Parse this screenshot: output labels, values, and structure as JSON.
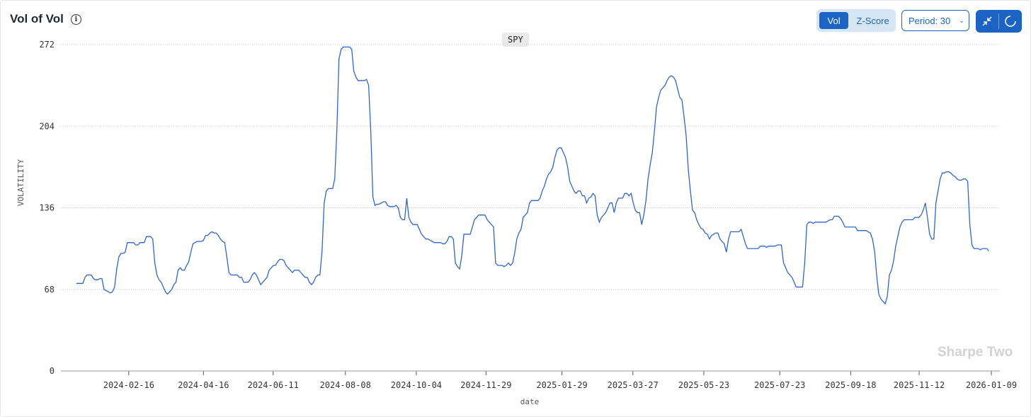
{
  "header": {
    "title": "Vol of Vol",
    "info_icon": "info-icon",
    "toggle": {
      "vol_label": "Vol",
      "zscore_label": "Z-Score",
      "active": "Vol"
    },
    "period_label": "Period: 30",
    "actions": [
      "collapse-icon",
      "refresh-icon"
    ]
  },
  "badge": "SPY",
  "watermark": "Sharpe Two",
  "colors": {
    "accent": "#1b64c4",
    "line": "#2e66cc",
    "grid": "#c8c8c8"
  },
  "chart_data": {
    "type": "line",
    "xlabel": "date",
    "ylabel": "VOLATILITY",
    "x_start": "2024-01-05",
    "x_end": "2026-01-07",
    "xlim": [
      "2024-01-01",
      "2026-01-09"
    ],
    "ylim": [
      0,
      272
    ],
    "yticks": [
      0,
      68,
      136,
      204,
      272
    ],
    "xticks": [
      "2024-02-16",
      "2024-04-16",
      "2024-06-11",
      "2024-08-08",
      "2024-10-04",
      "2024-11-29",
      "2025-01-29",
      "2025-03-27",
      "2025-05-23",
      "2025-07-23",
      "2025-09-18",
      "2025-11-12",
      "2026-01-09"
    ],
    "grid": true,
    "series": [
      {
        "name": "SPY",
        "values": [
          73,
          73,
          73,
          73,
          78,
          80,
          80,
          80,
          77,
          76,
          76,
          77,
          77,
          68,
          67,
          66,
          65,
          66,
          70,
          85,
          95,
          98,
          98,
          99,
          107,
          107,
          107,
          107,
          105,
          105,
          107,
          107,
          107,
          112,
          112,
          112,
          110,
          90,
          80,
          76,
          74,
          70,
          66,
          64,
          66,
          68,
          72,
          74,
          84,
          86,
          84,
          84,
          88,
          91,
          99,
          106,
          107,
          108,
          108,
          108,
          109,
          113,
          113,
          115,
          116,
          115,
          115,
          113,
          110,
          108,
          107,
          95,
          82,
          80,
          80,
          80,
          80,
          78,
          78,
          74,
          74,
          74,
          76,
          80,
          82,
          80,
          76,
          72,
          74,
          76,
          78,
          84,
          86,
          88,
          88,
          91,
          93,
          93,
          92,
          88,
          86,
          84,
          82,
          84,
          84,
          84,
          82,
          80,
          78,
          78,
          74,
          72,
          74,
          78,
          80,
          80,
          100,
          140,
          150,
          152,
          152,
          152,
          160,
          200,
          260,
          268,
          270,
          270,
          270,
          270,
          268,
          250,
          245,
          242,
          242,
          242,
          242,
          243,
          238,
          200,
          145,
          138,
          139,
          139,
          140,
          141,
          141,
          138,
          137,
          137,
          137,
          138,
          136,
          128,
          126,
          126,
          144,
          128,
          124,
          122,
          122,
          122,
          118,
          114,
          112,
          110,
          110,
          109,
          108,
          107,
          107,
          107,
          107,
          106,
          106,
          108,
          112,
          112,
          110,
          90,
          87,
          85,
          96,
          114,
          114,
          114,
          114,
          120,
          126,
          128,
          130,
          130,
          130,
          130,
          126,
          124,
          122,
          120,
          90,
          88,
          88,
          88,
          87,
          88,
          90,
          88,
          90,
          98,
          110,
          115,
          118,
          128,
          130,
          132,
          140,
          142,
          142,
          142,
          142,
          144,
          150,
          154,
          160,
          164,
          166,
          170,
          178,
          184,
          186,
          186,
          182,
          178,
          170,
          158,
          154,
          150,
          148,
          150,
          150,
          146,
          146,
          140,
          144,
          145,
          148,
          146,
          130,
          124,
          128,
          130,
          132,
          136,
          140,
          140,
          132,
          140,
          144,
          144,
          144,
          148,
          148,
          146,
          148,
          140,
          134,
          132,
          132,
          122,
          130,
          142,
          160,
          172,
          182,
          200,
          220,
          228,
          234,
          236,
          238,
          242,
          245,
          246,
          245,
          242,
          235,
          228,
          226,
          212,
          196,
          168,
          150,
          134,
          132,
          126,
          122,
          119,
          118,
          115,
          114,
          110,
          113,
          114,
          115,
          115,
          110,
          108,
          106,
          99,
          110,
          116,
          116,
          116,
          116,
          116,
          118,
          112,
          106,
          102,
          102,
          102,
          102,
          102,
          102,
          104,
          104,
          104,
          103,
          104,
          104,
          104,
          104,
          105,
          105,
          105,
          90,
          86,
          82,
          80,
          78,
          74,
          70,
          70,
          70,
          70,
          90,
          122,
          124,
          124,
          123,
          124,
          124,
          124,
          124,
          124,
          124,
          125,
          126,
          126,
          129,
          129,
          129,
          127,
          124,
          120,
          120,
          120,
          120,
          120,
          120,
          117,
          117,
          117,
          117,
          117,
          116,
          115,
          110,
          100,
          80,
          64,
          60,
          58,
          56,
          62,
          80,
          84,
          92,
          104,
          112,
          120,
          124,
          126,
          126,
          126,
          126,
          126,
          128,
          128,
          128,
          130,
          134,
          140,
          128,
          114,
          110,
          110,
          140,
          150,
          160,
          165,
          165,
          166,
          166,
          165,
          163,
          162,
          160,
          159,
          159,
          160,
          160,
          158,
          122,
          105,
          102,
          102,
          102,
          101,
          102,
          102,
          102,
          100
        ]
      }
    ]
  }
}
